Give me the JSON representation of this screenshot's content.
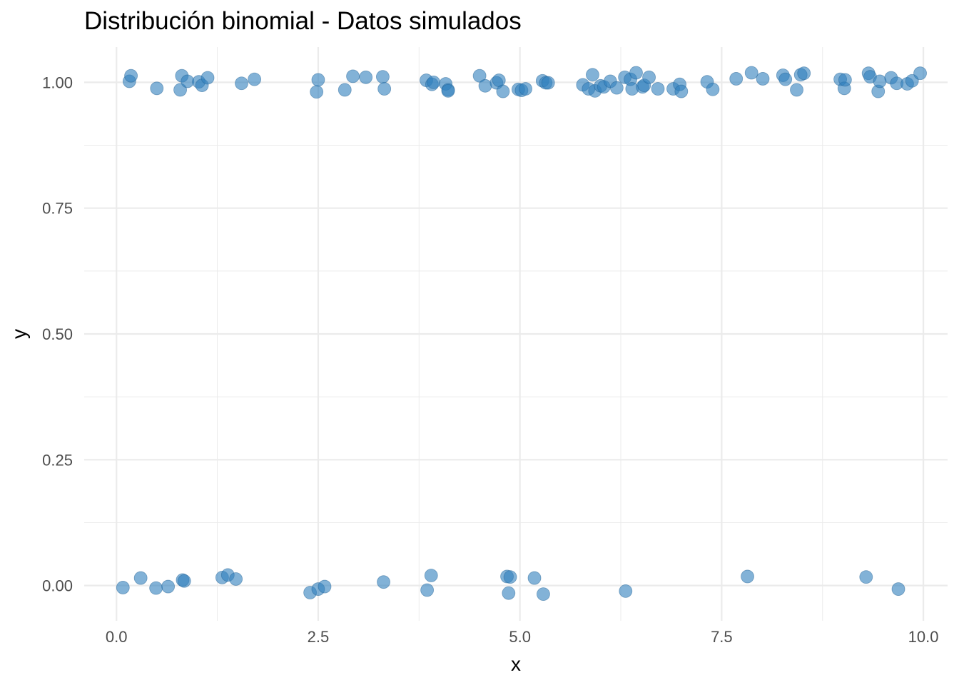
{
  "chart_data": {
    "type": "scatter",
    "title": "Distribución binomial - Datos simulados",
    "xlabel": "x",
    "ylabel": "y",
    "xlim": [
      -0.4,
      10.3
    ],
    "ylim": [
      -0.07,
      1.07
    ],
    "x_ticks": [
      0,
      2.5,
      5,
      7.5,
      10
    ],
    "x_tick_labels": [
      "0.0",
      "2.5",
      "5.0",
      "7.5",
      "10.0"
    ],
    "y_ticks": [
      0,
      0.25,
      0.5,
      0.75,
      1
    ],
    "y_tick_labels": [
      "0.00",
      "0.25",
      "0.50",
      "0.75",
      "1.00"
    ],
    "grid": true,
    "point_color": "#2f7ebc",
    "point_opacity": 0.6,
    "series": [
      {
        "values": [
          {
            "x": 0.16,
            "y": 1.002
          },
          {
            "x": 0.18,
            "y": 1.013
          },
          {
            "x": 0.5,
            "y": 0.988
          },
          {
            "x": 0.79,
            "y": 0.985
          },
          {
            "x": 0.81,
            "y": 1.013
          },
          {
            "x": 0.88,
            "y": 1.002
          },
          {
            "x": 1.02,
            "y": 1.001
          },
          {
            "x": 1.06,
            "y": 0.994
          },
          {
            "x": 1.13,
            "y": 1.009
          },
          {
            "x": 1.55,
            "y": 0.998
          },
          {
            "x": 1.71,
            "y": 1.006
          },
          {
            "x": 2.48,
            "y": 0.981
          },
          {
            "x": 2.5,
            "y": 1.005
          },
          {
            "x": 2.83,
            "y": 0.985
          },
          {
            "x": 2.93,
            "y": 1.012
          },
          {
            "x": 3.09,
            "y": 1.01
          },
          {
            "x": 3.3,
            "y": 1.011
          },
          {
            "x": 3.32,
            "y": 0.987
          },
          {
            "x": 3.84,
            "y": 1.004
          },
          {
            "x": 3.91,
            "y": 0.996
          },
          {
            "x": 3.93,
            "y": 1.0
          },
          {
            "x": 4.08,
            "y": 0.997
          },
          {
            "x": 4.11,
            "y": 0.985
          },
          {
            "x": 4.11,
            "y": 0.983
          },
          {
            "x": 4.5,
            "y": 1.013
          },
          {
            "x": 4.57,
            "y": 0.993
          },
          {
            "x": 4.71,
            "y": 0.999
          },
          {
            "x": 4.74,
            "y": 1.004
          },
          {
            "x": 4.79,
            "y": 0.982
          },
          {
            "x": 4.98,
            "y": 0.986
          },
          {
            "x": 5.02,
            "y": 0.984
          },
          {
            "x": 5.07,
            "y": 0.987
          },
          {
            "x": 5.28,
            "y": 1.003
          },
          {
            "x": 5.32,
            "y": 0.999
          },
          {
            "x": 5.35,
            "y": 0.999
          },
          {
            "x": 5.78,
            "y": 0.995
          },
          {
            "x": 5.85,
            "y": 0.987
          },
          {
            "x": 5.9,
            "y": 1.015
          },
          {
            "x": 5.93,
            "y": 0.983
          },
          {
            "x": 6.0,
            "y": 0.993
          },
          {
            "x": 6.04,
            "y": 0.991
          },
          {
            "x": 6.12,
            "y": 1.002
          },
          {
            "x": 6.2,
            "y": 0.989
          },
          {
            "x": 6.3,
            "y": 1.01
          },
          {
            "x": 6.37,
            "y": 1.006
          },
          {
            "x": 6.39,
            "y": 0.987
          },
          {
            "x": 6.44,
            "y": 1.019
          },
          {
            "x": 6.52,
            "y": 0.991
          },
          {
            "x": 6.54,
            "y": 0.994
          },
          {
            "x": 6.6,
            "y": 1.01
          },
          {
            "x": 6.71,
            "y": 0.987
          },
          {
            "x": 6.9,
            "y": 0.987
          },
          {
            "x": 6.98,
            "y": 0.996
          },
          {
            "x": 7.0,
            "y": 0.982
          },
          {
            "x": 7.32,
            "y": 1.001
          },
          {
            "x": 7.39,
            "y": 0.986
          },
          {
            "x": 7.68,
            "y": 1.007
          },
          {
            "x": 7.87,
            "y": 1.019
          },
          {
            "x": 8.01,
            "y": 1.007
          },
          {
            "x": 8.26,
            "y": 1.014
          },
          {
            "x": 8.29,
            "y": 1.006
          },
          {
            "x": 8.43,
            "y": 0.985
          },
          {
            "x": 8.48,
            "y": 1.015
          },
          {
            "x": 8.52,
            "y": 1.018
          },
          {
            "x": 8.97,
            "y": 1.006
          },
          {
            "x": 9.02,
            "y": 0.988
          },
          {
            "x": 9.03,
            "y": 1.005
          },
          {
            "x": 9.32,
            "y": 1.018
          },
          {
            "x": 9.34,
            "y": 1.011
          },
          {
            "x": 9.44,
            "y": 0.982
          },
          {
            "x": 9.46,
            "y": 1.002
          },
          {
            "x": 9.6,
            "y": 1.009
          },
          {
            "x": 9.67,
            "y": 0.998
          },
          {
            "x": 9.8,
            "y": 0.997
          },
          {
            "x": 9.86,
            "y": 1.003
          },
          {
            "x": 9.96,
            "y": 1.018
          },
          {
            "x": 0.08,
            "y": -0.004
          },
          {
            "x": 0.3,
            "y": 0.015
          },
          {
            "x": 0.49,
            "y": -0.005
          },
          {
            "x": 0.64,
            "y": -0.002
          },
          {
            "x": 0.82,
            "y": 0.011
          },
          {
            "x": 0.84,
            "y": 0.009
          },
          {
            "x": 1.31,
            "y": 0.016
          },
          {
            "x": 1.38,
            "y": 0.021
          },
          {
            "x": 1.48,
            "y": 0.013
          },
          {
            "x": 2.4,
            "y": -0.014
          },
          {
            "x": 2.5,
            "y": -0.007
          },
          {
            "x": 2.58,
            "y": -0.002
          },
          {
            "x": 3.31,
            "y": 0.007
          },
          {
            "x": 3.85,
            "y": -0.009
          },
          {
            "x": 3.9,
            "y": 0.02
          },
          {
            "x": 4.84,
            "y": 0.018
          },
          {
            "x": 4.86,
            "y": -0.015
          },
          {
            "x": 4.88,
            "y": 0.017
          },
          {
            "x": 5.18,
            "y": 0.015
          },
          {
            "x": 5.29,
            "y": -0.017
          },
          {
            "x": 6.31,
            "y": -0.011
          },
          {
            "x": 7.82,
            "y": 0.018
          },
          {
            "x": 9.29,
            "y": 0.017
          },
          {
            "x": 9.69,
            "y": -0.007
          }
        ]
      }
    ]
  }
}
